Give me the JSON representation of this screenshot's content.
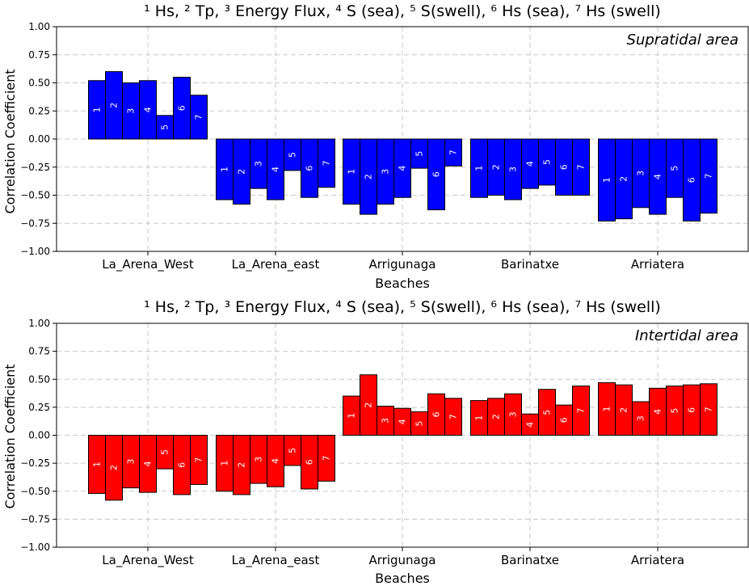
{
  "chart_data": [
    {
      "type": "bar",
      "title": "¹ Hs, ² Tp, ³ Energy Flux, ⁴ S (sea), ⁵ S(swell), ⁶ Hs (sea), ⁷ Hs (swell)",
      "annotation": "Supratidal area",
      "xlabel": "Beaches",
      "ylabel": "Correlation Coefficient",
      "ylim": [
        -1.0,
        1.0
      ],
      "yticks": [
        "1.00",
        "0.75",
        "0.50",
        "0.25",
        "0.00",
        "−0.25",
        "−0.50",
        "−0.75",
        "−1.00"
      ],
      "ytick_values": [
        1.0,
        0.75,
        0.5,
        0.25,
        0.0,
        -0.25,
        -0.5,
        -0.75,
        -1.0
      ],
      "grid": true,
      "bar_color": "#0000ff",
      "bar_labels": [
        "1",
        "2",
        "3",
        "4",
        "5",
        "6",
        "7"
      ],
      "categories": [
        "La_Arena_West",
        "La_Arena_east",
        "Arrigunaga",
        "Barinatxe",
        "Arriatera"
      ],
      "values": [
        [
          0.52,
          0.6,
          0.5,
          0.52,
          0.21,
          0.55,
          0.39
        ],
        [
          -0.54,
          -0.58,
          -0.44,
          -0.54,
          -0.28,
          -0.52,
          -0.43
        ],
        [
          -0.58,
          -0.67,
          -0.58,
          -0.52,
          -0.26,
          -0.63,
          -0.24
        ],
        [
          -0.52,
          -0.5,
          -0.54,
          -0.44,
          -0.41,
          -0.5,
          -0.5
        ],
        [
          -0.73,
          -0.71,
          -0.61,
          -0.67,
          -0.52,
          -0.73,
          -0.66
        ]
      ]
    },
    {
      "type": "bar",
      "title": "¹ Hs, ² Tp, ³ Energy Flux, ⁴ S (sea), ⁵ S(swell), ⁶ Hs (sea), ⁷ Hs (swell)",
      "annotation": "Intertidal area",
      "xlabel": "Beaches",
      "ylabel": "Correlation Coefficient",
      "ylim": [
        -1.0,
        1.0
      ],
      "yticks": [
        "1.00",
        "0.75",
        "0.50",
        "0.25",
        "0.00",
        "−0.25",
        "−0.50",
        "−0.75",
        "−1.00"
      ],
      "ytick_values": [
        1.0,
        0.75,
        0.5,
        0.25,
        0.0,
        -0.25,
        -0.5,
        -0.75,
        -1.0
      ],
      "grid": true,
      "bar_color": "#ff0000",
      "bar_labels": [
        "1",
        "2",
        "3",
        "4",
        "5",
        "6",
        "7"
      ],
      "categories": [
        "La_Arena_West",
        "La_Arena_east",
        "Arrigunaga",
        "Barinatxe",
        "Arriatera"
      ],
      "values": [
        [
          -0.52,
          -0.58,
          -0.47,
          -0.51,
          -0.3,
          -0.53,
          -0.44
        ],
        [
          -0.5,
          -0.53,
          -0.43,
          -0.46,
          -0.27,
          -0.48,
          -0.41
        ],
        [
          0.35,
          0.54,
          0.26,
          0.24,
          0.21,
          0.37,
          0.33
        ],
        [
          0.31,
          0.33,
          0.37,
          0.19,
          0.41,
          0.27,
          0.44
        ],
        [
          0.47,
          0.45,
          0.3,
          0.42,
          0.44,
          0.45,
          0.46
        ]
      ]
    }
  ]
}
